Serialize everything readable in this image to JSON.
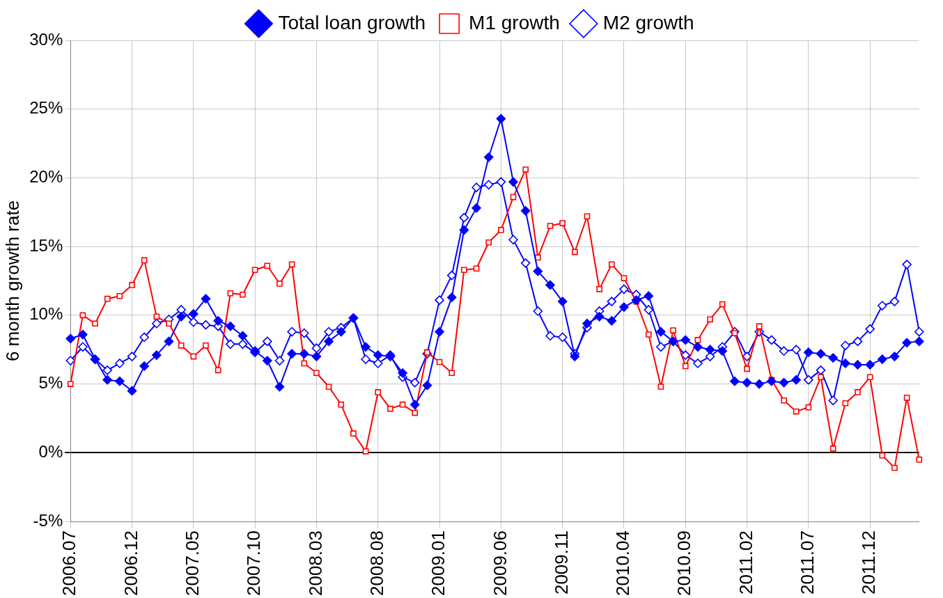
{
  "chart_data": {
    "type": "line",
    "ylabel": "6 month growth rate",
    "categories": [
      "2006.07",
      null,
      null,
      null,
      null,
      "2006.12",
      null,
      null,
      null,
      null,
      "2007.05",
      null,
      null,
      null,
      null,
      "2007.10",
      null,
      null,
      null,
      null,
      "2008.03",
      null,
      null,
      null,
      null,
      "2008.08",
      null,
      null,
      null,
      null,
      "2009.01",
      null,
      null,
      null,
      null,
      "2009.06",
      null,
      null,
      null,
      null,
      "2009.11",
      null,
      null,
      null,
      null,
      "2010.04",
      null,
      null,
      null,
      null,
      "2010.09",
      null,
      null,
      null,
      null,
      "2011.02",
      null,
      null,
      null,
      null,
      "2011.07",
      null,
      null,
      null,
      null,
      "2011.12",
      null,
      null,
      null,
      null
    ],
    "series": [
      {
        "name": "Total loan growth",
        "color": "#0000ff",
        "marker": "diamond",
        "values": [
          8.3,
          8.6,
          6.8,
          5.3,
          5.2,
          4.5,
          6.3,
          7.1,
          8.1,
          9.9,
          10.1,
          11.2,
          9.6,
          9.2,
          8.5,
          7.4,
          6.7,
          4.8,
          7.2,
          7.2,
          7.0,
          8.1,
          8.8,
          9.8,
          7.7,
          7.1,
          7.0,
          5.8,
          3.5,
          4.9,
          8.8,
          11.3,
          16.2,
          17.8,
          21.5,
          24.3,
          19.7,
          17.6,
          13.2,
          12.2,
          11.0,
          7.0,
          9.4,
          9.9,
          9.6,
          10.6,
          11.1,
          11.4,
          8.8,
          8.1,
          8.2,
          7.7,
          7.5,
          7.4,
          5.2,
          5.1,
          5.0,
          5.2,
          5.1,
          5.3,
          7.3,
          7.2,
          6.9,
          6.5,
          6.4,
          6.4,
          6.8,
          7.0,
          8.0,
          8.1
        ]
      },
      {
        "name": "M1 growth",
        "color": "#ff0000",
        "marker": "square",
        "values": [
          5.0,
          10.0,
          9.4,
          11.2,
          11.4,
          12.2,
          14.0,
          9.9,
          9.4,
          7.8,
          7.0,
          7.8,
          6.0,
          11.6,
          11.5,
          13.3,
          13.6,
          12.3,
          13.7,
          6.5,
          5.8,
          4.8,
          3.5,
          1.4,
          0.1,
          4.4,
          3.2,
          3.5,
          2.9,
          7.3,
          6.6,
          5.8,
          13.3,
          13.4,
          15.3,
          16.2,
          18.6,
          20.6,
          14.2,
          16.5,
          16.7,
          14.6,
          17.2,
          11.9,
          13.7,
          12.7,
          11.0,
          8.6,
          4.8,
          8.9,
          6.3,
          8.2,
          9.7,
          10.8,
          8.7,
          6.1,
          9.2,
          5.3,
          3.8,
          3.0,
          3.3,
          5.5,
          0.3,
          3.6,
          4.4,
          5.5,
          -0.2,
          -1.1,
          4.0,
          -0.5
        ]
      },
      {
        "name": "M2 growth",
        "color": "#0000ff",
        "marker": "diamond",
        "values": [
          6.7,
          7.7,
          6.8,
          6.0,
          6.5,
          7.0,
          8.4,
          9.4,
          9.7,
          10.4,
          9.5,
          9.3,
          9.2,
          7.9,
          7.9,
          7.3,
          8.1,
          6.7,
          8.8,
          8.7,
          7.6,
          8.8,
          9.1,
          9.8,
          6.8,
          6.5,
          7.1,
          5.5,
          5.1,
          7.2,
          11.1,
          12.9,
          17.1,
          19.3,
          19.5,
          19.7,
          15.5,
          13.8,
          10.3,
          8.5,
          8.4,
          7.2,
          9.1,
          10.3,
          11.0,
          11.9,
          11.5,
          10.4,
          7.7,
          8.1,
          7.1,
          6.5,
          7.0,
          7.7,
          8.8,
          7.0,
          8.8,
          8.2,
          7.4,
          7.5,
          5.3,
          6.0,
          3.8,
          7.8,
          8.1,
          9.0,
          10.7,
          11.0,
          13.7,
          8.8
        ]
      }
    ],
    "ylim": [
      -5,
      30
    ],
    "yticks": [
      {
        "value": -5,
        "label": "-5%"
      },
      {
        "value": 0,
        "label": "0%"
      },
      {
        "value": 5,
        "label": "5%"
      },
      {
        "value": 10,
        "label": "10%"
      },
      {
        "value": 15,
        "label": "15%"
      },
      {
        "value": 20,
        "label": "20%"
      },
      {
        "value": 25,
        "label": "25%"
      },
      {
        "value": 30,
        "label": "30%"
      }
    ],
    "grid": true,
    "legend": "top",
    "line_style": "solid"
  }
}
